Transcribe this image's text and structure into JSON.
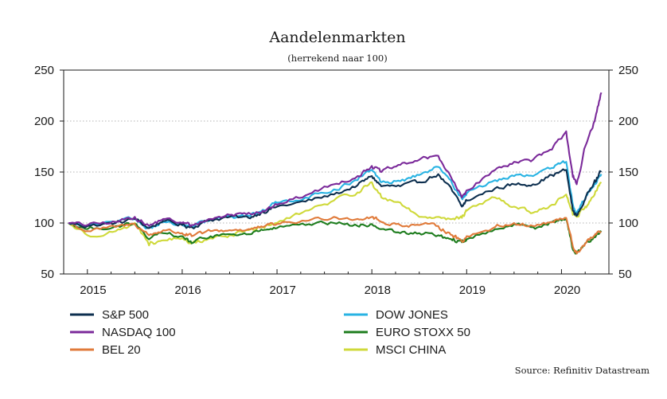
{
  "chart_data": {
    "type": "line",
    "title": "Aandelenmarkten",
    "subtitle": "(herrekend naar 100)",
    "source": "Source: Refinitiv Datastream",
    "xlabel": "",
    "ylabel": "",
    "xlim": [
      2014.75,
      2020.5
    ],
    "ylim": [
      50,
      250
    ],
    "y_ticks": [
      50,
      100,
      150,
      200,
      250
    ],
    "x_ticks": [
      {
        "label": "2015",
        "value": 2015.0
      },
      {
        "label": "2016",
        "value": 2016.0
      },
      {
        "label": "2017",
        "value": 2017.0
      },
      {
        "label": "2018",
        "value": 2018.0
      },
      {
        "label": "2019",
        "value": 2019.0
      },
      {
        "label": "2020",
        "value": 2020.0
      }
    ],
    "y_axis_both_sides": true,
    "grid": "horizontal dotted",
    "legend_placement": "bottom, two columns",
    "x": [
      2014.8,
      2015.0,
      2015.3,
      2015.5,
      2015.65,
      2015.8,
      2016.0,
      2016.1,
      2016.3,
      2016.5,
      2016.7,
      2016.85,
      2017.0,
      2017.3,
      2017.6,
      2017.85,
      2018.0,
      2018.1,
      2018.3,
      2018.5,
      2018.7,
      2018.85,
      2018.95,
      2019.0,
      2019.3,
      2019.5,
      2019.7,
      2019.9,
      2020.05,
      2020.12,
      2020.16,
      2020.25,
      2020.35,
      2020.42
    ],
    "series": [
      {
        "name": "S&P 500",
        "color": "#0d2f4f",
        "values": [
          100,
          97,
          100,
          104,
          95,
          102,
          98,
          96,
          103,
          106,
          105,
          111,
          116,
          121,
          128,
          137,
          146,
          136,
          136,
          140,
          148,
          131,
          116,
          122,
          134,
          138,
          138,
          147,
          152,
          112,
          107,
          123,
          142,
          151
        ]
      },
      {
        "name": "NASDAQ 100",
        "color": "#7b2a9a",
        "values": [
          100,
          98,
          101,
          106,
          97,
          104,
          100,
          98,
          104,
          108,
          110,
          112,
          118,
          127,
          138,
          146,
          156,
          150,
          157,
          162,
          166,
          142,
          125,
          132,
          152,
          160,
          162,
          172,
          190,
          145,
          138,
          175,
          200,
          228
        ]
      },
      {
        "name": "BEL 20",
        "color": "#e07a3a",
        "values": [
          100,
          92,
          96,
          99,
          88,
          93,
          90,
          87,
          92,
          93,
          94,
          96,
          99,
          102,
          106,
          104,
          106,
          101,
          98,
          98,
          97,
          88,
          82,
          87,
          96,
          100,
          97,
          101,
          105,
          77,
          70,
          80,
          88,
          91
        ]
      },
      {
        "name": "DOW JONES",
        "color": "#28b3e3",
        "values": [
          100,
          97,
          101,
          104,
          95,
          101,
          98,
          96,
          103,
          106,
          107,
          113,
          120,
          125,
          133,
          142,
          152,
          140,
          141,
          147,
          155,
          138,
          124,
          129,
          142,
          146,
          146,
          154,
          160,
          118,
          110,
          124,
          139,
          148
        ]
      },
      {
        "name": "EURO STOXX 50",
        "color": "#1e7d1e",
        "values": [
          100,
          94,
          97,
          99,
          84,
          90,
          87,
          80,
          87,
          89,
          89,
          93,
          95,
          98,
          100,
          97,
          99,
          94,
          90,
          90,
          88,
          83,
          81,
          84,
          94,
          99,
          96,
          101,
          104,
          74,
          70,
          80,
          86,
          91
        ]
      },
      {
        "name": "MSCI CHINA",
        "color": "#cfd93a",
        "values": [
          100,
          88,
          92,
          100,
          78,
          83,
          85,
          80,
          85,
          88,
          93,
          96,
          100,
          112,
          122,
          130,
          140,
          125,
          120,
          106,
          106,
          104,
          105,
          112,
          125,
          116,
          110,
          118,
          128,
          108,
          106,
          116,
          128,
          140
        ]
      }
    ]
  }
}
